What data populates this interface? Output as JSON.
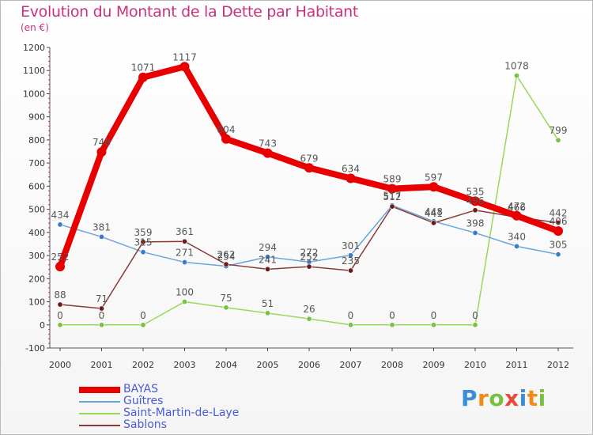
{
  "title": "Evolution du Montant de la Dette par Habitant",
  "subtitle": "(en €)",
  "logo": "Proxiti",
  "chart_data": {
    "type": "line",
    "x": [
      "2000",
      "2001",
      "2002",
      "2003",
      "2004",
      "2005",
      "2006",
      "2007",
      "2008",
      "2009",
      "2010",
      "2011",
      "2012"
    ],
    "ylim": [
      -100,
      1200
    ],
    "yticks": [
      -100,
      0,
      100,
      200,
      300,
      400,
      500,
      600,
      700,
      800,
      900,
      1000,
      1100,
      1200
    ],
    "grid": false,
    "legend_position": "bottom-left",
    "series": [
      {
        "name": "Saint-Martin-de-Laye",
        "color": "#9ad85a",
        "marker": "#7ac143",
        "width": 1.5,
        "values": [
          0,
          0,
          0,
          100,
          75,
          51,
          26,
          0,
          0,
          0,
          0,
          1078,
          799
        ]
      },
      {
        "name": "Guîtres",
        "color": "#6aa5d8",
        "marker": "#3a7cc8",
        "width": 1.5,
        "values": [
          434,
          381,
          315,
          271,
          254,
          294,
          272,
          301,
          517,
          448,
          398,
          340,
          305
        ]
      },
      {
        "name": "Sablons",
        "color": "#8a3a3a",
        "marker": "#6e1a1a",
        "width": 1.5,
        "values": [
          88,
          71,
          359,
          361,
          262,
          241,
          252,
          235,
          512,
          441,
          496,
          466,
          442
        ]
      },
      {
        "name": "BAYAS",
        "color": "#e80000",
        "marker": "#e80000",
        "width": 8,
        "values": [
          252,
          748,
          1071,
          1117,
          804,
          743,
          679,
          634,
          589,
          597,
          535,
          472,
          406
        ]
      }
    ],
    "data_labels": [
      [
        "0",
        "0",
        "0",
        "100",
        "75",
        "51",
        "26",
        "0",
        "0",
        "0",
        "0",
        "1078",
        "799"
      ],
      [
        "434",
        "381",
        "315",
        "271",
        "254",
        "294",
        "272",
        "301",
        "517",
        "448",
        "398",
        "340",
        "305"
      ],
      [
        "88",
        "71",
        "359",
        "361",
        "262",
        "241",
        "252",
        "235",
        "512",
        "441",
        "496",
        "466",
        "442"
      ],
      [
        "252",
        "748",
        "1071",
        "1117",
        "804",
        "743",
        "679",
        "634",
        "589",
        "597",
        "535",
        "472",
        "406"
      ]
    ]
  },
  "legend": [
    {
      "label": "BAYAS",
      "color": "#e80000",
      "width": 8
    },
    {
      "label": "Guîtres",
      "color": "#6aa5d8",
      "width": 2
    },
    {
      "label": "Saint-Martin-de-Laye",
      "color": "#9ad85a",
      "width": 2
    },
    {
      "label": "Sablons",
      "color": "#8a3a3a",
      "width": 2
    }
  ]
}
